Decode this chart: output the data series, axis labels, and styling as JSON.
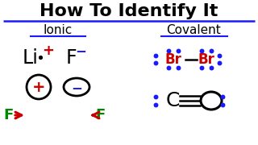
{
  "title": "How To Identify It",
  "bg_color": "#ffffff",
  "ionic_label": "Ionic",
  "covalent_label": "Covalent",
  "black_color": "#000000",
  "blue_color": "#1a1aff",
  "red_color": "#cc0000",
  "green_color": "#008800"
}
